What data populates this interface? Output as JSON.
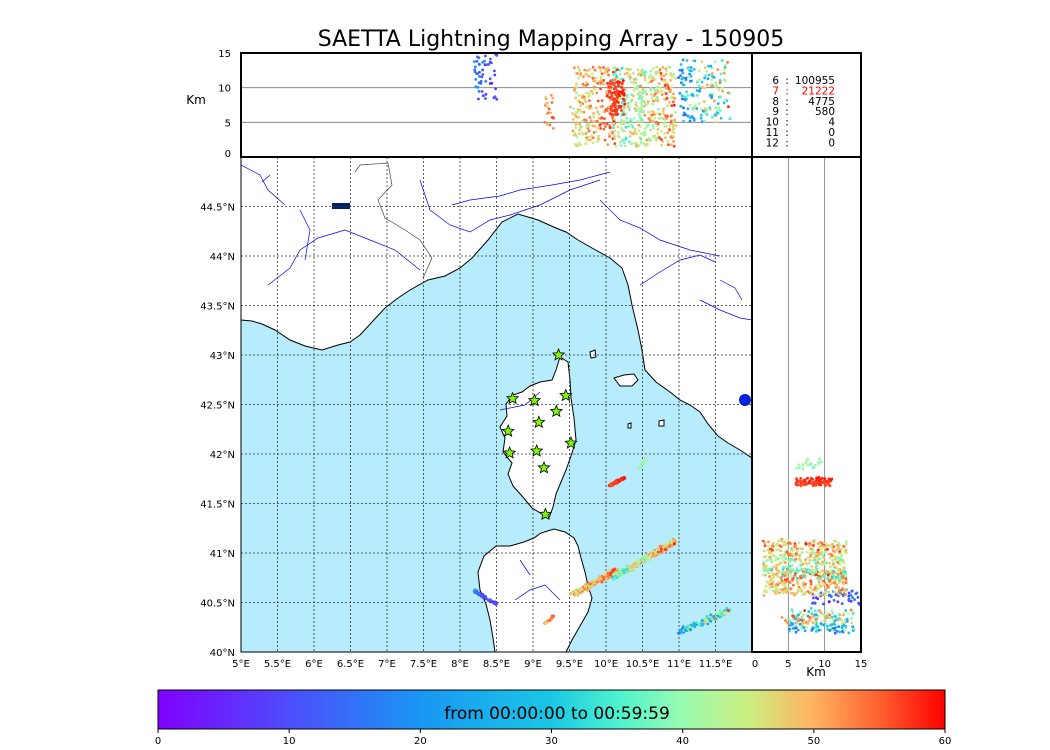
{
  "chart_data": {
    "type": "scatter",
    "title": "SAETTA Lightning Mapping Array - 150905",
    "colors": {
      "sea": "#b6ecfb",
      "land": "#ffffff",
      "rivers": "#0000ff",
      "borders": "#333333",
      "stations": "#7cfc00",
      "highlight": "#ff0000"
    },
    "map": {
      "xlim": [
        5,
        12
      ],
      "ylim": [
        40,
        45
      ],
      "xticks": [
        5,
        5.5,
        6,
        6.5,
        7,
        7.5,
        8,
        8.5,
        9,
        9.5,
        10,
        10.5,
        11,
        11.5
      ],
      "xtick_labels": [
        "5°E",
        "5.5°E",
        "6°E",
        "6.5°E",
        "7°E",
        "7.5°E",
        "8°E",
        "8.5°E",
        "9°E",
        "9.5°E",
        "10°E",
        "10.5°E",
        "11°E",
        "11.5°E"
      ],
      "yticks": [
        40,
        40.5,
        41,
        41.5,
        42,
        42.5,
        43,
        43.5,
        44,
        44.5
      ],
      "ytick_labels": [
        "40°N",
        "40.5°N",
        "41°N",
        "41.5°N",
        "42°N",
        "42.5°N",
        "43°N",
        "43.5°N",
        "44°N",
        "44.5°N"
      ]
    },
    "alt_axis": {
      "label": "Km",
      "ylim": [
        0,
        15
      ],
      "ticks": [
        0,
        5,
        10,
        15
      ],
      "tick_labels": [
        "0",
        "5",
        "10",
        "15"
      ]
    },
    "side_axis": {
      "label": "Km",
      "xlim": [
        0,
        15
      ],
      "ticks": [
        0,
        5,
        10,
        15
      ],
      "tick_labels": [
        "0",
        "5",
        "10",
        "15"
      ]
    },
    "stations": [
      {
        "lon": 9.35,
        "lat": 43.0
      },
      {
        "lon": 8.72,
        "lat": 42.56
      },
      {
        "lon": 9.02,
        "lat": 42.54
      },
      {
        "lon": 9.45,
        "lat": 42.59
      },
      {
        "lon": 9.08,
        "lat": 42.32
      },
      {
        "lon": 9.32,
        "lat": 42.43
      },
      {
        "lon": 8.66,
        "lat": 42.23
      },
      {
        "lon": 9.52,
        "lat": 42.11
      },
      {
        "lon": 8.68,
        "lat": 42.01
      },
      {
        "lon": 9.05,
        "lat": 42.03
      },
      {
        "lon": 9.15,
        "lat": 41.86
      },
      {
        "lon": 9.17,
        "lat": 41.39
      }
    ],
    "clusters": [
      {
        "lon": [
          8.5,
          8.2
        ],
        "lat": [
          40.48,
          40.62
        ],
        "t": [
          0,
          25
        ],
        "alt": [
          8,
          16
        ],
        "n": 60,
        "spread": 0.025
      },
      {
        "lon": [
          9.55,
          10.15
        ],
        "lat": [
          40.58,
          40.82
        ],
        "t": [
          40,
          60
        ],
        "alt": [
          1.5,
          13
        ],
        "n": 240,
        "spread": 0.045
      },
      {
        "lon": [
          10.1,
          10.95
        ],
        "lat": [
          40.75,
          41.12
        ],
        "t": [
          30,
          60
        ],
        "alt": [
          1.5,
          13
        ],
        "n": 380,
        "spread": 0.04
      },
      {
        "lon": [
          10.05,
          10.25
        ],
        "lat": [
          41.68,
          41.76
        ],
        "t": [
          55,
          60
        ],
        "alt": [
          6,
          11
        ],
        "n": 90,
        "spread": 0.02
      },
      {
        "lon": [
          10.45,
          10.55
        ],
        "lat": [
          41.85,
          41.95
        ],
        "t": [
          36,
          44
        ],
        "alt": [
          6,
          10
        ],
        "n": 20,
        "spread": 0.02
      },
      {
        "lon": [
          11.0,
          11.7
        ],
        "lat": [
          40.2,
          40.42
        ],
        "t": [
          10,
          60
        ],
        "alt": [
          5,
          14
        ],
        "n": 160,
        "spread": 0.05
      },
      {
        "lon": [
          9.15,
          9.28
        ],
        "lat": [
          40.28,
          40.36
        ],
        "t": [
          45,
          58
        ],
        "alt": [
          4,
          9
        ],
        "n": 20,
        "spread": 0.015
      }
    ],
    "counts": [
      {
        "key": "6",
        "value": "100955"
      },
      {
        "key": "7",
        "value": "21222"
      },
      {
        "key": "8",
        "value": "4775"
      },
      {
        "key": "9",
        "value": "580"
      },
      {
        "key": "10",
        "value": "4"
      },
      {
        "key": "11",
        "value": "0"
      },
      {
        "key": "12",
        "value": "0"
      }
    ],
    "highlight_count_index": 1,
    "colorbar": {
      "label": "from 00:00:00 to 00:59:59",
      "range": [
        0,
        60
      ],
      "ticks": [
        0,
        10,
        20,
        30,
        40,
        50,
        60
      ],
      "tick_labels": [
        "0",
        "10",
        "20",
        "30",
        "40",
        "50",
        "60"
      ]
    }
  }
}
